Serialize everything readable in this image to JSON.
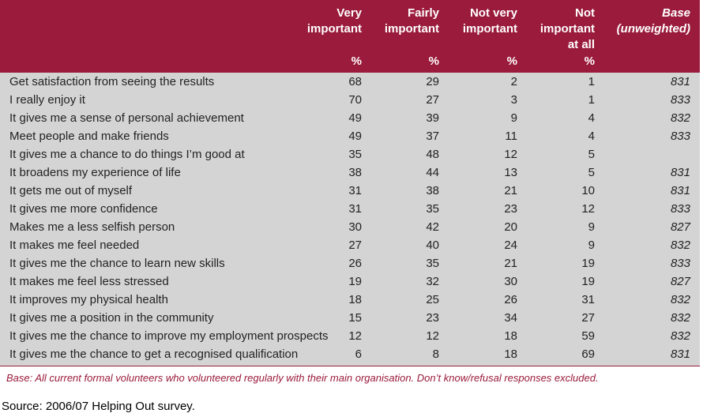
{
  "table": {
    "columns": [
      {
        "lines": [
          "Very",
          "important"
        ],
        "unit": "%"
      },
      {
        "lines": [
          "Fairly",
          "important"
        ],
        "unit": "%"
      },
      {
        "lines": [
          "Not very",
          "important"
        ],
        "unit": "%"
      },
      {
        "lines": [
          "Not",
          "important",
          "at all"
        ],
        "unit": "%"
      },
      {
        "lines": [
          "Base",
          "(unweighted)"
        ]
      }
    ],
    "rows": [
      [
        "Get satisfaction from seeing the results",
        68,
        29,
        2,
        1,
        831
      ],
      [
        "I really enjoy it",
        70,
        27,
        3,
        1,
        833
      ],
      [
        "It gives me a sense of personal achievement",
        49,
        39,
        9,
        4,
        832
      ],
      [
        "Meet people and make friends",
        49,
        37,
        11,
        4,
        833
      ],
      [
        "It gives me a chance to do things I’m good at",
        35,
        48,
        12,
        5,
        null
      ],
      [
        "It broadens my experience of life",
        38,
        44,
        13,
        5,
        831
      ],
      [
        "It gets me out of myself",
        31,
        38,
        21,
        10,
        831
      ],
      [
        "It gives me more confidence",
        31,
        35,
        23,
        12,
        833
      ],
      [
        "Makes me a less selfish person",
        30,
        42,
        20,
        9,
        827
      ],
      [
        "It makes me feel needed",
        27,
        40,
        24,
        9,
        832
      ],
      [
        "It gives me the chance to learn new skills",
        26,
        35,
        21,
        19,
        833
      ],
      [
        "It makes me feel less stressed",
        19,
        32,
        30,
        19,
        827
      ],
      [
        "It improves my physical health",
        18,
        25,
        26,
        31,
        832
      ],
      [
        "It gives me a position in the community",
        15,
        23,
        34,
        27,
        832
      ],
      [
        "It gives me the chance to improve my employment prospects",
        12,
        12,
        18,
        59,
        832
      ],
      [
        "It gives me the chance to get a recognised qualification",
        6,
        8,
        18,
        69,
        831
      ]
    ]
  },
  "note": "Base: All current formal volunteers who volunteered regularly with their main organisation. Don’t know/refusal responses excluded.",
  "source": "Source: 2006/07 Helping Out survey."
}
